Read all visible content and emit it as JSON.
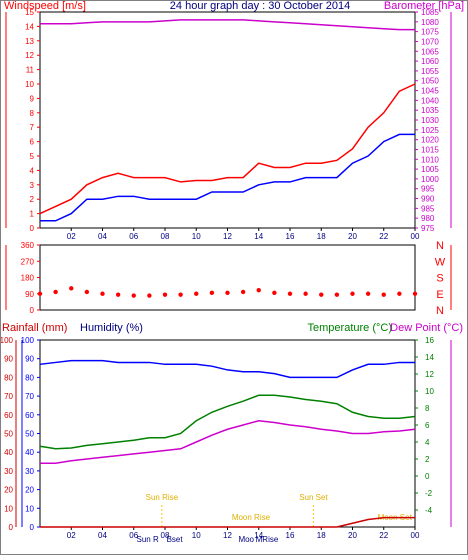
{
  "chart_data": [
    {
      "type": "line",
      "panel": "wind-baro",
      "title": "24 hour graph day : 30 October 2014",
      "left_axis_title": "Windspeed [m/s]",
      "right_axis_title": "Barometer [hPa]",
      "x_ticks": [
        "02",
        "04",
        "06",
        "08",
        "10",
        "12",
        "14",
        "16",
        "18",
        "20",
        "22",
        "00"
      ],
      "ylim_left": [
        0,
        15
      ],
      "ylim_right": [
        975,
        1085
      ],
      "y_ticks_left": [
        "0",
        "1",
        "2",
        "3",
        "4",
        "5",
        "6",
        "7",
        "8",
        "9",
        "10",
        "11",
        "12",
        "13",
        "14",
        "15"
      ],
      "y_ticks_right": [
        "975",
        "980",
        "985",
        "990",
        "995",
        "1000",
        "1005",
        "1010",
        "1015",
        "1020",
        "1025",
        "1030",
        "1035",
        "1040",
        "1045",
        "1050",
        "1055",
        "1060",
        "1065",
        "1070",
        "1075",
        "1080",
        "1085"
      ],
      "x": [
        0,
        1,
        2,
        3,
        4,
        5,
        6,
        7,
        8,
        9,
        10,
        11,
        12,
        13,
        14,
        15,
        16,
        17,
        18,
        19,
        20,
        21,
        22,
        23,
        24
      ],
      "series": [
        {
          "name": "gust",
          "color": "#ff0000",
          "axis": "left",
          "values": [
            1,
            1.5,
            2,
            3,
            3.5,
            3.8,
            3.5,
            3.5,
            3.5,
            3.2,
            3.3,
            3.3,
            3.5,
            3.5,
            4.5,
            4.2,
            4.2,
            4.5,
            4.5,
            4.7,
            5.5,
            7,
            8,
            9.5,
            10
          ]
        },
        {
          "name": "average",
          "color": "#0000ff",
          "axis": "left",
          "values": [
            0.5,
            0.5,
            1,
            2,
            2,
            2.2,
            2.2,
            2,
            2,
            2,
            2,
            2.5,
            2.5,
            2.5,
            3,
            3.2,
            3.2,
            3.5,
            3.5,
            3.5,
            4.5,
            5,
            6,
            6.5,
            6.5
          ]
        },
        {
          "name": "barometer",
          "color": "#cc00cc",
          "axis": "right",
          "values": [
            1079,
            1079,
            1079,
            1079.5,
            1080,
            1080,
            1080,
            1080,
            1080.5,
            1081,
            1081,
            1081,
            1081,
            1081,
            1080.5,
            1080,
            1079.5,
            1079,
            1078.5,
            1078,
            1077.5,
            1077,
            1076.5,
            1076,
            1076
          ]
        }
      ]
    },
    {
      "type": "scatter",
      "panel": "wind-direction",
      "x_ticks": [
        "02",
        "04",
        "06",
        "08",
        "10",
        "12",
        "14",
        "16",
        "18",
        "20",
        "22",
        "00"
      ],
      "ylim": [
        0,
        360
      ],
      "y_ticks": [
        "0",
        "90",
        "180",
        "270",
        "360"
      ],
      "right_labels": [
        "N",
        "W",
        "S",
        "E",
        "N"
      ],
      "x": [
        0,
        1,
        2,
        3,
        4,
        5,
        6,
        7,
        8,
        9,
        10,
        11,
        12,
        13,
        14,
        15,
        16,
        17,
        18,
        19,
        20,
        21,
        22,
        23,
        24
      ],
      "series": [
        {
          "name": "direction",
          "color": "#ff0000",
          "values": [
            90,
            100,
            120,
            100,
            90,
            85,
            80,
            80,
            85,
            85,
            90,
            95,
            95,
            100,
            110,
            95,
            90,
            90,
            85,
            85,
            90,
            90,
            85,
            90,
            90
          ]
        }
      ]
    },
    {
      "type": "line",
      "panel": "rain-hum-temp",
      "left_axis_title_rain": "Rainfall (mm)",
      "left_axis_title_humidity": "Humidity (%)",
      "right_axis_title_temp": "Temperature (°C)",
      "right_axis_title_dew": "Dew Point (°C)",
      "x_ticks": [
        "02",
        "04",
        "06",
        "08",
        "10",
        "12",
        "14",
        "16",
        "18",
        "20",
        "22",
        "00"
      ],
      "ylim_rain": [
        0,
        100
      ],
      "ylim_humidity": [
        0,
        100
      ],
      "ylim_temp": [
        -6,
        16
      ],
      "y_ticks_rain": [
        "0",
        "10",
        "20",
        "30",
        "40",
        "50",
        "60",
        "70",
        "80",
        "90",
        "100"
      ],
      "y_ticks_humidity": [
        "0",
        "10",
        "20",
        "30",
        "40",
        "50",
        "60",
        "70",
        "80",
        "90",
        "100"
      ],
      "y_ticks_temp": [
        "-4",
        "-2",
        "0",
        "2",
        "4",
        "6",
        "8",
        "10",
        "12",
        "14",
        "16"
      ],
      "annotations": {
        "sun_rise": "Sun Rise",
        "sun_set": "Sun Set",
        "moon_rise": "Moon Rise",
        "moon_set": "Moon Set",
        "sun_rise_short": "Sun R",
        "sun_set_short": "Bset",
        "moon_rise_short": "Moo",
        "moon_set_short": "MRise"
      },
      "x": [
        0,
        1,
        2,
        3,
        4,
        5,
        6,
        7,
        8,
        9,
        10,
        11,
        12,
        13,
        14,
        15,
        16,
        17,
        18,
        19,
        20,
        21,
        22,
        23,
        24
      ],
      "series": [
        {
          "name": "humidity",
          "color": "#0000ff",
          "axis": "humidity",
          "values": [
            87,
            88,
            89,
            89,
            89,
            88,
            88,
            88,
            87,
            87,
            87,
            86,
            84,
            83,
            83,
            82,
            80,
            80,
            80,
            80,
            84,
            87,
            87,
            88,
            88
          ]
        },
        {
          "name": "temperature",
          "color": "#008000",
          "axis": "temp",
          "values": [
            3.5,
            3.2,
            3.3,
            3.6,
            3.8,
            4,
            4.2,
            4.5,
            4.5,
            5,
            6.5,
            7.5,
            8.2,
            8.8,
            9.5,
            9.5,
            9.3,
            9,
            8.8,
            8.5,
            7.5,
            7,
            6.8,
            6.8,
            7
          ]
        },
        {
          "name": "dew point",
          "color": "#cc00cc",
          "axis": "temp",
          "values": [
            1.5,
            1.5,
            1.8,
            2,
            2.2,
            2.4,
            2.6,
            2.8,
            3,
            3.2,
            4,
            4.8,
            5.5,
            6,
            6.5,
            6.3,
            6,
            5.8,
            5.5,
            5.3,
            5,
            5,
            5.2,
            5.3,
            5.5
          ]
        },
        {
          "name": "rainfall",
          "color": "#cc0000",
          "axis": "rain",
          "values": [
            0,
            0,
            0,
            0,
            0,
            0,
            0,
            0,
            0,
            0,
            0,
            0,
            0,
            0,
            0,
            0,
            0,
            0,
            0,
            0,
            2,
            4,
            5,
            5,
            5
          ]
        }
      ]
    }
  ]
}
